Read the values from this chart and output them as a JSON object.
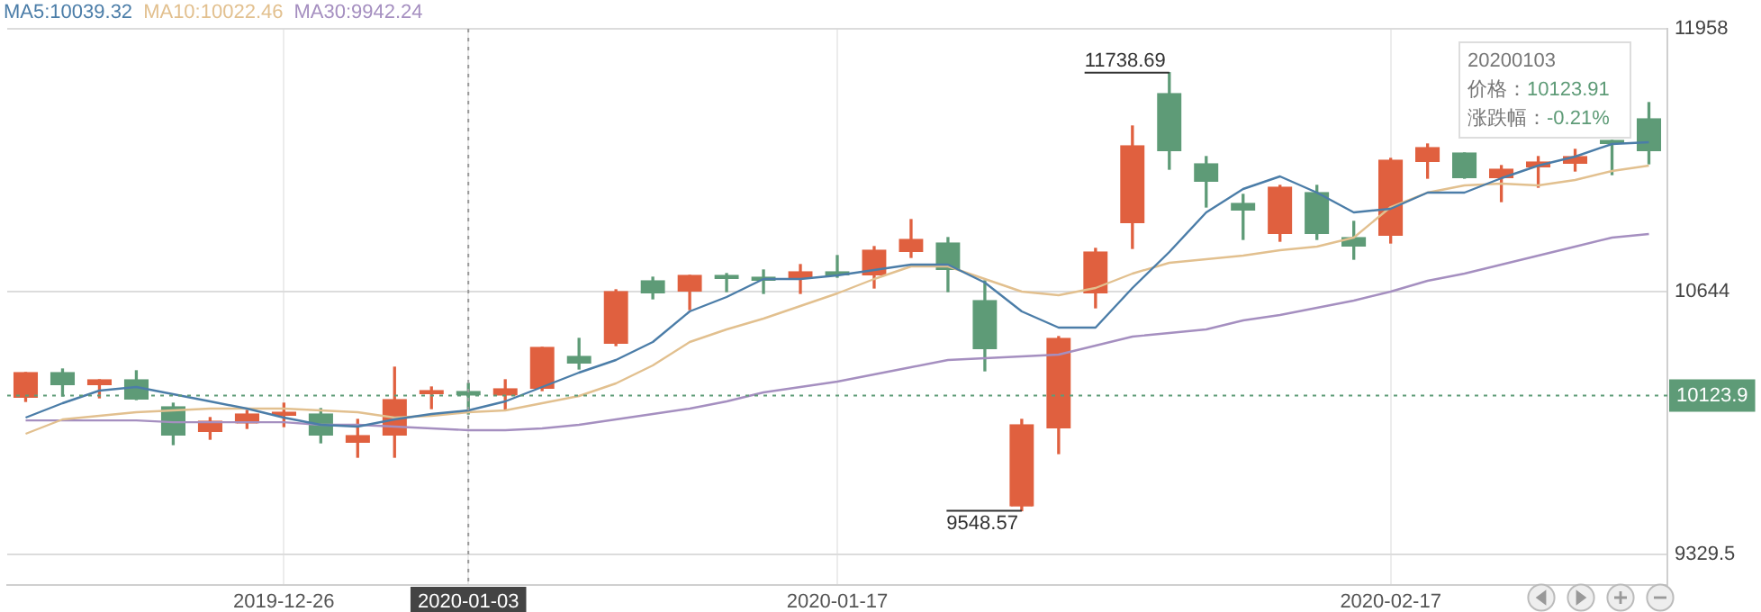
{
  "chart_data": {
    "type": "candlestick",
    "categories": [
      null,
      null,
      null,
      null,
      null,
      null,
      null,
      "2019-12-26",
      null,
      null,
      null,
      null,
      "2020-01-03",
      null,
      null,
      null,
      null,
      null,
      null,
      null,
      null,
      null,
      "2020-01-17",
      null,
      null,
      null,
      null,
      null,
      null,
      null,
      null,
      null,
      null,
      null,
      null,
      null,
      null,
      "2020-02-17",
      null,
      null,
      null,
      null,
      null,
      null,
      null
    ],
    "ohlc": [
      [
        10113,
        10239,
        10095,
        10239
      ],
      [
        10239,
        10257,
        10122,
        10176
      ],
      [
        10176,
        10203,
        10113,
        10203
      ],
      [
        10203,
        10248,
        10104,
        10104
      ],
      [
        10068,
        10086,
        9879,
        9924
      ],
      [
        9942,
        10014,
        9906,
        9996
      ],
      [
        9985,
        10050,
        9960,
        10032
      ],
      [
        10023,
        10086,
        9969,
        10041
      ],
      [
        10032,
        10059,
        9888,
        9924
      ],
      [
        9888,
        10005,
        9816,
        9924
      ],
      [
        9924,
        10266,
        9816,
        10104
      ],
      [
        10131,
        10167,
        10059,
        10149
      ],
      [
        10145,
        10185,
        10032,
        10123.91
      ],
      [
        10124,
        10203,
        10050,
        10158
      ],
      [
        10158,
        10365,
        10149,
        10365
      ],
      [
        10320,
        10410,
        10257,
        10284
      ],
      [
        10383,
        10653,
        10374,
        10644
      ],
      [
        10698,
        10716,
        10608,
        10635
      ],
      [
        10644,
        10725,
        10554,
        10725
      ],
      [
        10716,
        10734,
        10644,
        10707
      ],
      [
        10707,
        10752,
        10635,
        10698
      ],
      [
        10707,
        10779,
        10635,
        10743
      ],
      [
        10743,
        10824,
        10716,
        10725
      ],
      [
        10725,
        10869,
        10662,
        10851
      ],
      [
        10842,
        11004,
        10815,
        10905
      ],
      [
        10887,
        10914,
        10644,
        10752
      ],
      [
        10599,
        10698,
        10248,
        10356
      ],
      [
        9570,
        10005,
        9548.57,
        9978
      ],
      [
        9960,
        10419,
        9834,
        10410
      ],
      [
        10635,
        10860,
        10563,
        10842
      ],
      [
        10986,
        11472,
        10860,
        11373
      ],
      [
        11634,
        11738.69,
        11256,
        11346
      ],
      [
        11283,
        11319,
        11067,
        11193
      ],
      [
        11085,
        11130,
        10905,
        11049
      ],
      [
        10932,
        11175,
        10896,
        11166
      ],
      [
        11139,
        11175,
        10905,
        10932
      ],
      [
        10914,
        10995,
        10806,
        10869
      ],
      [
        10923,
        11310,
        10887,
        11301
      ],
      [
        11292,
        11382,
        11211,
        11364
      ],
      [
        11337,
        11337,
        11211,
        11211
      ],
      [
        11211,
        11274,
        11094,
        11256
      ],
      [
        11265,
        11319,
        11166,
        11292
      ],
      [
        11283,
        11355,
        11247,
        11319
      ],
      [
        11391,
        11400,
        11229,
        11382
      ],
      [
        11508,
        11589,
        11283,
        11346
      ]
    ],
    "colors": [
      "#e0603f",
      "#5e9b77",
      "#e0603f",
      "#5e9b77",
      "#5e9b77",
      "#e0603f",
      "#e0603f",
      "#e0603f",
      "#5e9b77",
      "#e0603f",
      "#e0603f",
      "#e0603f",
      "#5e9b77",
      "#e0603f",
      "#e0603f",
      "#5e9b77",
      "#e0603f",
      "#5e9b77",
      "#e0603f",
      "#5e9b77",
      "#5e9b77",
      "#e0603f",
      "#5e9b77",
      "#e0603f",
      "#e0603f",
      "#5e9b77",
      "#5e9b77",
      "#e0603f",
      "#e0603f",
      "#e0603f",
      "#e0603f",
      "#5e9b77",
      "#5e9b77",
      "#5e9b77",
      "#e0603f",
      "#5e9b77",
      "#5e9b77",
      "#e0603f",
      "#e0603f",
      "#5e9b77",
      "#e0603f",
      "#e0603f",
      "#e0603f",
      "#5e9b77",
      "#5e9b77"
    ],
    "series": [
      {
        "name": "MA5:10039.32",
        "type": "line",
        "color": "#4b7da8",
        "values": [
          10014,
          10086,
          10149,
          10167,
          10131,
          10095,
          10059,
          10014,
          9978,
          9969,
          10005,
          10032,
          10050,
          10095,
          10167,
          10239,
          10302,
          10392,
          10545,
          10617,
          10707,
          10707,
          10725,
          10752,
          10779,
          10779,
          10689,
          10545,
          10464,
          10464,
          10662,
          10842,
          11040,
          11157,
          11220,
          11139,
          11040,
          11058,
          11139,
          11139,
          11211,
          11274,
          11319,
          11382,
          11391
        ]
      },
      {
        "name": "MA10:10022.46",
        "type": "line",
        "color": "#e2c08f",
        "values": [
          9933,
          10005,
          10023,
          10041,
          10050,
          10059,
          10059,
          10059,
          10050,
          10041,
          10014,
          10023,
          10041,
          10050,
          10086,
          10122,
          10185,
          10275,
          10392,
          10455,
          10509,
          10572,
          10635,
          10707,
          10770,
          10770,
          10707,
          10644,
          10626,
          10662,
          10734,
          10788,
          10806,
          10824,
          10851,
          10869,
          10914,
          11067,
          11139,
          11175,
          11184,
          11175,
          11202,
          11247,
          11274
        ]
      },
      {
        "name": "MA30:9942.24",
        "type": "line",
        "color": "#a58fc0",
        "values": [
          10000,
          10000,
          10000,
          10000,
          9991,
          9991,
          9991,
          9991,
          9978,
          9978,
          9969,
          9960,
          9951,
          9951,
          9960,
          9978,
          10005,
          10032,
          10059,
          10095,
          10140,
          10167,
          10194,
          10230,
          10266,
          10302,
          10311,
          10320,
          10329,
          10374,
          10419,
          10437,
          10455,
          10500,
          10527,
          10563,
          10599,
          10644,
          10698,
          10734,
          10779,
          10824,
          10869,
          10914,
          10932
        ]
      }
    ],
    "ylim": [
      9177,
      11958
    ],
    "yticks": [
      11958,
      10644,
      9329.5
    ],
    "grid": true,
    "legend": "top left",
    "ref_lines": [
      {
        "axis": "y",
        "value": 10123.9,
        "label": "10123.9",
        "color": "#5e9b77",
        "line_style": "dotted"
      },
      {
        "axis": "x",
        "value": "2020-01-03",
        "color": "#9a9a9a",
        "line_style": "dotted"
      }
    ],
    "annotations": [
      "11738.69",
      "9548.57",
      "20200103",
      "价格：10123.91",
      "涨跌幅：-0.21%"
    ]
  }
}
